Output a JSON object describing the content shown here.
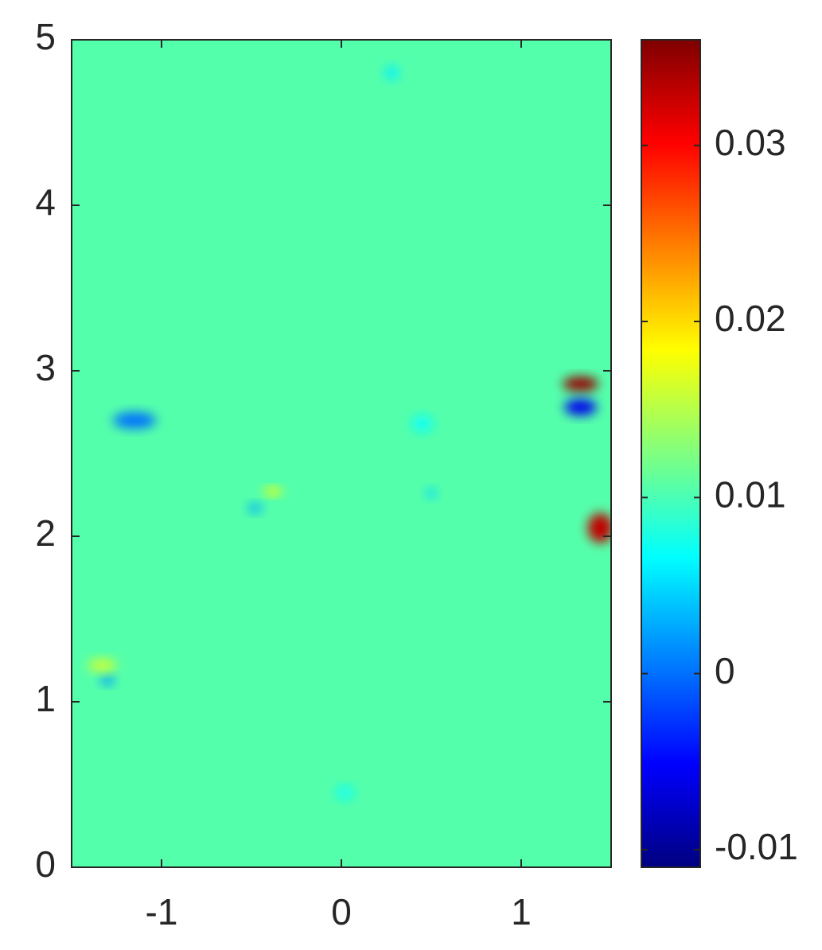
{
  "chart_data": {
    "type": "heatmap",
    "colormap": "jet",
    "xlim": [
      -1.5,
      1.5
    ],
    "ylim": [
      0,
      5
    ],
    "xticks": [
      -1,
      0,
      1
    ],
    "yticks": [
      0,
      1,
      2,
      3,
      4,
      5
    ],
    "clim": [
      -0.011,
      0.036
    ],
    "cticks": [
      -0.01,
      0,
      0.01,
      0.02,
      0.03
    ],
    "background": 0.0105,
    "spots": [
      {
        "x": 1.33,
        "y": 2.92,
        "value": 0.035,
        "rx": 0.1,
        "ry": 0.045
      },
      {
        "x": 1.33,
        "y": 2.78,
        "value": -0.006,
        "rx": 0.09,
        "ry": 0.05
      },
      {
        "x": 1.44,
        "y": 2.05,
        "value": 0.033,
        "rx": 0.07,
        "ry": 0.09
      },
      {
        "x": -1.15,
        "y": 2.7,
        "value": 0.0,
        "rx": 0.12,
        "ry": 0.05
      },
      {
        "x": -0.48,
        "y": 2.17,
        "value": 0.003,
        "rx": 0.04,
        "ry": 0.03
      },
      {
        "x": -0.38,
        "y": 2.27,
        "value": 0.018,
        "rx": 0.05,
        "ry": 0.025
      },
      {
        "x": -1.3,
        "y": 1.13,
        "value": 0.002,
        "rx": 0.04,
        "ry": 0.03
      },
      {
        "x": -1.33,
        "y": 1.22,
        "value": 0.016,
        "rx": 0.08,
        "ry": 0.04
      },
      {
        "x": 0.5,
        "y": 2.26,
        "value": 0.005,
        "rx": 0.03,
        "ry": 0.03
      },
      {
        "x": 0.28,
        "y": 4.8,
        "value": 0.006,
        "rx": 0.04,
        "ry": 0.04
      },
      {
        "x": 0.02,
        "y": 0.45,
        "value": 0.007,
        "rx": 0.05,
        "ry": 0.04
      },
      {
        "x": 0.45,
        "y": 2.68,
        "value": 0.007,
        "rx": 0.06,
        "ry": 0.05
      }
    ]
  }
}
